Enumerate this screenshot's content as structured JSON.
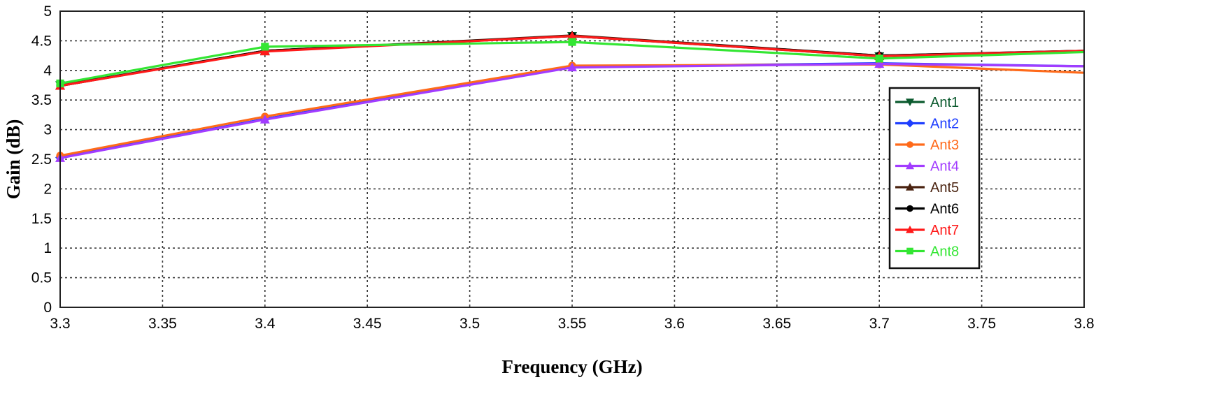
{
  "chart_data": {
    "type": "line",
    "title": "",
    "xlabel": "Frequency (GHz)",
    "ylabel": "Gain (dB)",
    "xlim": [
      3.3,
      3.8
    ],
    "ylim": [
      0,
      5
    ],
    "x_ticks": [
      "3.3",
      "3.35",
      "3.4",
      "3.45",
      "3.5",
      "3.55",
      "3.6",
      "3.65",
      "3.7",
      "3.75",
      "3.8"
    ],
    "y_ticks": [
      "0",
      "0.5",
      "1",
      "1.5",
      "2",
      "2.5",
      "3",
      "3.5",
      "4",
      "4.5",
      "5"
    ],
    "grid": true,
    "legend_position": "right",
    "x": [
      3.3,
      3.4,
      3.55,
      3.7,
      3.8
    ],
    "series": [
      {
        "name": "Ant1",
        "color": "#0b5a2e",
        "marker": "triangle-down",
        "values": [
          3.75,
          4.33,
          4.58,
          4.24,
          4.33
        ]
      },
      {
        "name": "Ant2",
        "color": "#1f3fff",
        "marker": "diamond",
        "values": [
          2.53,
          3.18,
          4.06,
          4.12,
          4.07
        ]
      },
      {
        "name": "Ant3",
        "color": "#ff6a1a",
        "marker": "circle",
        "values": [
          2.56,
          3.22,
          4.08,
          4.1,
          3.96
        ]
      },
      {
        "name": "Ant4",
        "color": "#a23cff",
        "marker": "triangle-up",
        "values": [
          2.52,
          3.17,
          4.05,
          4.11,
          4.07
        ]
      },
      {
        "name": "Ant5",
        "color": "#4a2310",
        "marker": "triangle-up",
        "values": [
          3.74,
          4.33,
          4.59,
          4.25,
          4.33
        ]
      },
      {
        "name": "Ant6",
        "color": "#000000",
        "marker": "circle",
        "values": [
          3.74,
          4.33,
          4.58,
          4.25,
          4.33
        ]
      },
      {
        "name": "Ant7",
        "color": "#ff1a1a",
        "marker": "triangle-up",
        "values": [
          3.74,
          4.32,
          4.58,
          4.24,
          4.33
        ]
      },
      {
        "name": "Ant8",
        "color": "#33e633",
        "marker": "square",
        "values": [
          3.78,
          4.4,
          4.48,
          4.2,
          4.31
        ]
      }
    ]
  }
}
